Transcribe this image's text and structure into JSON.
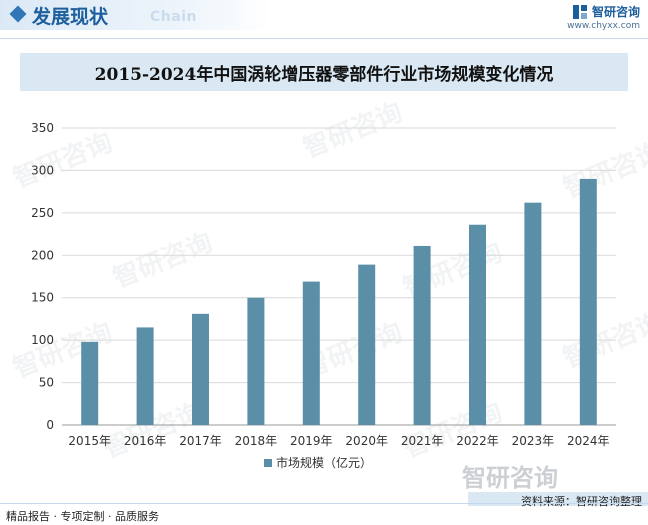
{
  "header": {
    "title": "发展现状",
    "subtitle": "Chain",
    "brand_name": "智研咨询",
    "brand_url": "www.chyxx.com",
    "accent_color": "#1d5e9c"
  },
  "watermark": {
    "text": "智研咨询"
  },
  "chart_data": {
    "type": "bar",
    "title": "2015-2024年中国涡轮增压器零部件行业市场规模变化情况",
    "xlabel": "",
    "ylabel": "",
    "categories": [
      "2015年",
      "2016年",
      "2017年",
      "2018年",
      "2019年",
      "2020年",
      "2021年",
      "2022年",
      "2023年",
      "2024年"
    ],
    "series": [
      {
        "name": "市场规模（亿元）",
        "values": [
          98,
          115,
          131,
          150,
          169,
          189,
          211,
          236,
          262,
          290
        ],
        "color": "#5b8fa8"
      }
    ],
    "ylim": [
      0,
      350
    ],
    "yticks": [
      0,
      50,
      100,
      150,
      200,
      250,
      300,
      350
    ],
    "grid": true,
    "legend_position": "bottom"
  },
  "footer": {
    "left": "精品报告 · 专项定制 · 品质服务",
    "source": "资料来源：智研咨询整理"
  }
}
